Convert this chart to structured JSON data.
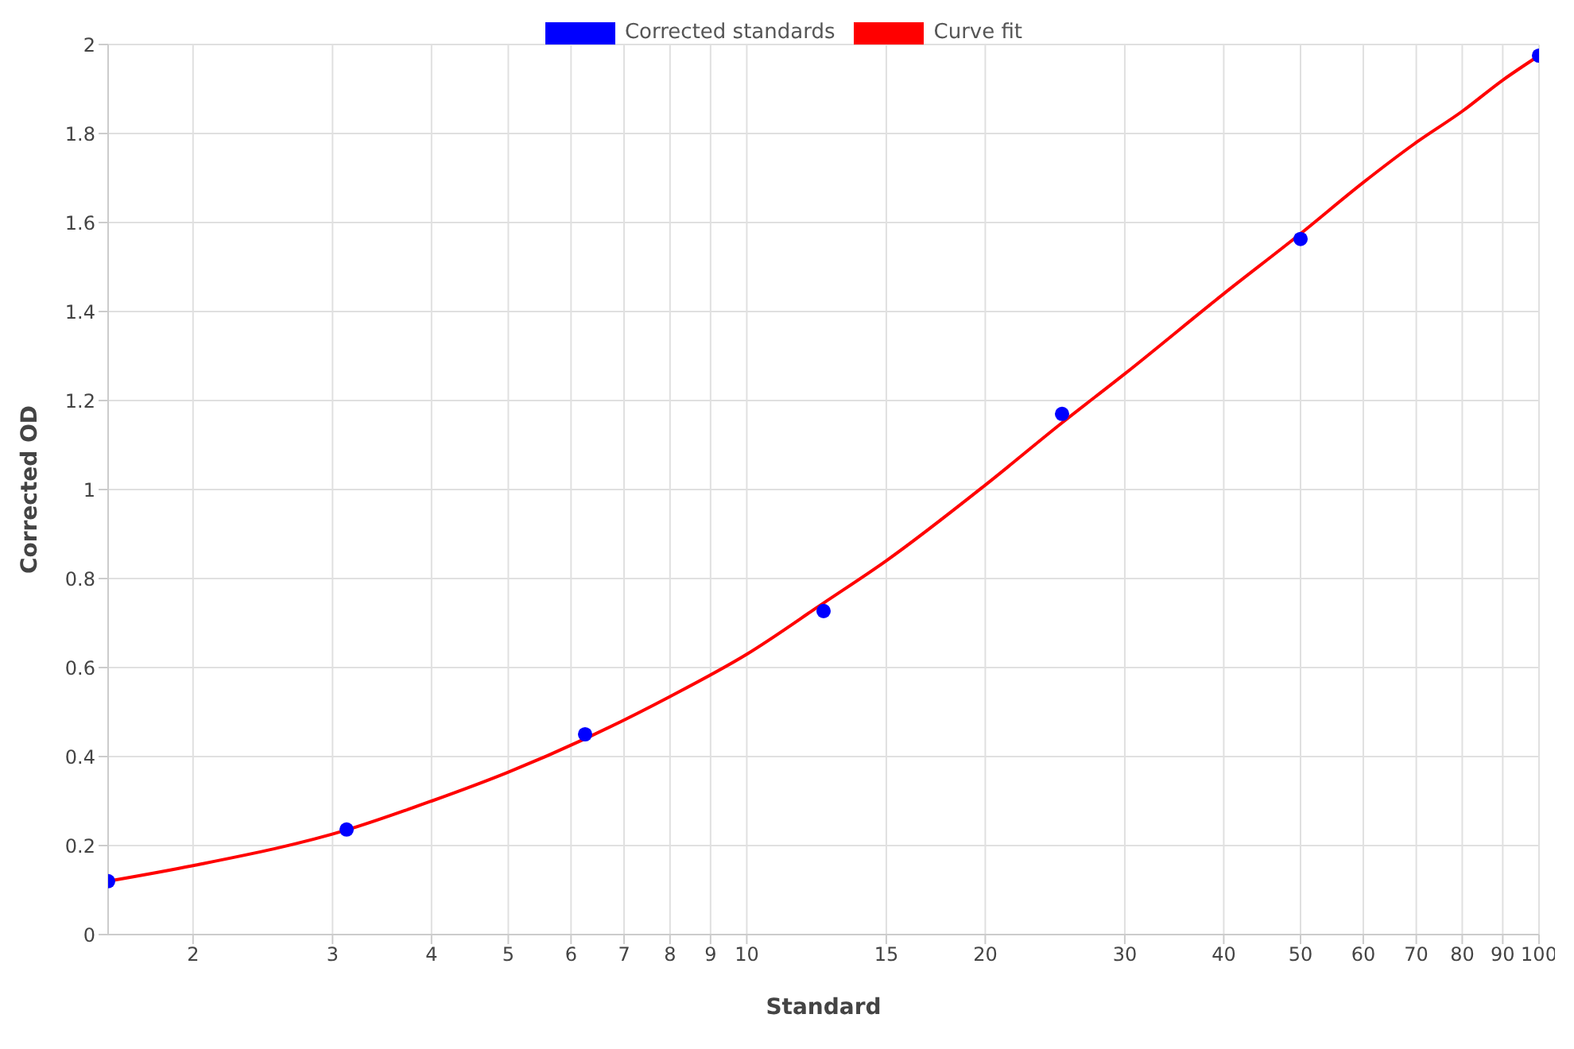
{
  "chart_data": {
    "type": "scatter",
    "xlabel": "Standard",
    "ylabel": "Corrected OD",
    "log": "x",
    "grid": true,
    "legend": "top",
    "line_style": "solid",
    "xlim": [
      1.5625,
      100
    ],
    "xticks": [
      2,
      3,
      4,
      5,
      6,
      7,
      8,
      9,
      10,
      15,
      20,
      30,
      40,
      50,
      60,
      70,
      80,
      90,
      100
    ],
    "ylim": [
      0,
      2
    ],
    "yticks": [
      0,
      0.2,
      0.4,
      0.6,
      0.8,
      1,
      1.2,
      1.4,
      1.6,
      1.8,
      2
    ],
    "series": [
      {
        "name": "Corrected standards",
        "marker": "circle",
        "color": "#0000ff",
        "x": [
          1.5625,
          3.125,
          6.25,
          12.5,
          25,
          50,
          100
        ],
        "values": [
          0.12,
          0.236,
          0.45,
          0.727,
          1.17,
          1.563,
          1.975
        ]
      },
      {
        "name": "Curve fit",
        "type": "line",
        "marker": "none",
        "color": "#ff0000",
        "x": [
          1.5625,
          2,
          3.125,
          4,
          5,
          6.25,
          8,
          10,
          12.5,
          15,
          20,
          25,
          30,
          40,
          50,
          60,
          70,
          80,
          90,
          100
        ],
        "values": [
          0.12,
          0.155,
          0.235,
          0.3,
          0.365,
          0.44,
          0.535,
          0.63,
          0.745,
          0.84,
          1.01,
          1.15,
          1.26,
          1.44,
          1.575,
          1.69,
          1.78,
          1.85,
          1.92,
          1.975
        ]
      }
    ]
  }
}
